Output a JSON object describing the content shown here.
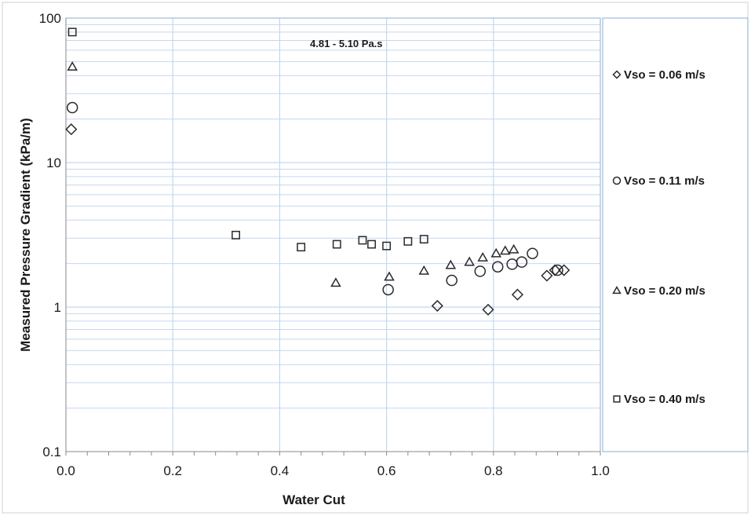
{
  "chart_data": {
    "type": "scatter",
    "title": "",
    "annotation": "4.81 - 5.10 Pa.s",
    "xlabel": "Water Cut",
    "ylabel": "Measured Pressure Gradient (kPa/m)",
    "xlim": [
      0.0,
      1.0
    ],
    "ylim": [
      0.1,
      100
    ],
    "yscale": "log",
    "x_ticks": [
      "0.0",
      "0.2",
      "0.4",
      "0.6",
      "0.8",
      "1.0"
    ],
    "y_ticks": [
      "0.1",
      "1",
      "10",
      "100"
    ],
    "grid": "horizontal major and minor gridlines, vertical major gridlines",
    "legend_position": "right",
    "series": [
      {
        "name": "Vso = 0.06 m/s",
        "marker": "diamond",
        "points": [
          {
            "x": 0.01,
            "y": 17
          },
          {
            "x": 0.695,
            "y": 1.02
          },
          {
            "x": 0.79,
            "y": 0.96
          },
          {
            "x": 0.845,
            "y": 1.22
          },
          {
            "x": 0.9,
            "y": 1.65
          },
          {
            "x": 0.915,
            "y": 1.8
          },
          {
            "x": 0.932,
            "y": 1.8
          }
        ]
      },
      {
        "name": "Vso = 0.11 m/s",
        "marker": "circle",
        "points": [
          {
            "x": 0.012,
            "y": 24
          },
          {
            "x": 0.603,
            "y": 1.32
          },
          {
            "x": 0.722,
            "y": 1.53
          },
          {
            "x": 0.775,
            "y": 1.77
          },
          {
            "x": 0.808,
            "y": 1.9
          },
          {
            "x": 0.835,
            "y": 1.98
          },
          {
            "x": 0.853,
            "y": 2.05
          },
          {
            "x": 0.873,
            "y": 2.35
          },
          {
            "x": 0.92,
            "y": 1.8
          }
        ]
      },
      {
        "name": "Vso = 0.20 m/s",
        "marker": "triangle",
        "points": [
          {
            "x": 0.012,
            "y": 46
          },
          {
            "x": 0.505,
            "y": 1.47
          },
          {
            "x": 0.605,
            "y": 1.62
          },
          {
            "x": 0.67,
            "y": 1.78
          },
          {
            "x": 0.72,
            "y": 1.95
          },
          {
            "x": 0.755,
            "y": 2.05
          },
          {
            "x": 0.78,
            "y": 2.2
          },
          {
            "x": 0.805,
            "y": 2.35
          },
          {
            "x": 0.822,
            "y": 2.45
          },
          {
            "x": 0.838,
            "y": 2.5
          }
        ]
      },
      {
        "name": "Vso = 0.40 m/s",
        "marker": "square",
        "points": [
          {
            "x": 0.012,
            "y": 80
          },
          {
            "x": 0.318,
            "y": 3.15
          },
          {
            "x": 0.44,
            "y": 2.6
          },
          {
            "x": 0.507,
            "y": 2.72
          },
          {
            "x": 0.555,
            "y": 2.9
          },
          {
            "x": 0.572,
            "y": 2.72
          },
          {
            "x": 0.6,
            "y": 2.65
          },
          {
            "x": 0.64,
            "y": 2.85
          },
          {
            "x": 0.67,
            "y": 2.95
          }
        ]
      }
    ],
    "colors": {
      "grid": "#c5d7ee",
      "frame": "#8aaed6",
      "marker": "#2a2a2a"
    }
  }
}
